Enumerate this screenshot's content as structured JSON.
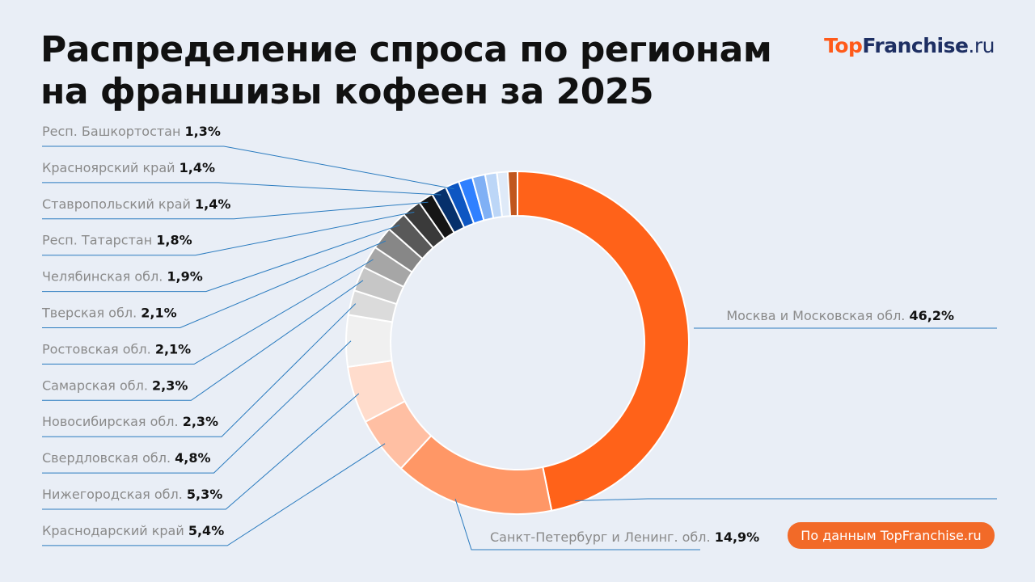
{
  "header": {
    "title_line1": "Распределение спроса по регионам",
    "title_line2": "на франшизы кофеен за 2025"
  },
  "logo": {
    "part1": "Top",
    "part2": "Franchise",
    "part3": ".ru"
  },
  "source_badge": "По данным TopFranchise.ru",
  "colors": {
    "background": "#e9eef6",
    "accent": "#f26a28",
    "leader_line": "#2a7bbf",
    "logo_dark": "#1e2f63"
  },
  "chart_data": {
    "type": "pie",
    "style": "donut",
    "title": "Распределение спроса по регионам на франшизы кофеен за 2025",
    "unit": "%",
    "slices": [
      {
        "label": "Москва и Московская обл.",
        "value": 46.2,
        "display": "46,2%",
        "color": "#ff6219"
      },
      {
        "label": "Санкт-Петербург и Ленинг. обл.",
        "value": 14.9,
        "display": "14,9%",
        "color": "#ff9766"
      },
      {
        "label": "Краснодарский край",
        "value": 5.4,
        "display": "5,4%",
        "color": "#ffbfa3"
      },
      {
        "label": "Нижегородская обл.",
        "value": 5.3,
        "display": "5,3%",
        "color": "#ffdccc"
      },
      {
        "label": "Свердловская обл.",
        "value": 4.8,
        "display": "4,8%",
        "color": "#f0f0f0"
      },
      {
        "label": "Новосибирская обл.",
        "value": 2.3,
        "display": "2,3%",
        "color": "#dbdbdb"
      },
      {
        "label": "Самарская обл.",
        "value": 2.3,
        "display": "2,3%",
        "color": "#c6c6c6"
      },
      {
        "label": "Ростовская обл.",
        "value": 2.1,
        "display": "2,1%",
        "color": "#a6a6a6"
      },
      {
        "label": "Тверская обл.",
        "value": 2.1,
        "display": "2,1%",
        "color": "#878787"
      },
      {
        "label": "Челябинская обл.",
        "value": 1.9,
        "display": "1,9%",
        "color": "#595959"
      },
      {
        "label": "Респ. Татарстан",
        "value": 1.8,
        "display": "1,8%",
        "color": "#3a3a3a"
      },
      {
        "label": "Ставропольский край",
        "value": 1.4,
        "display": "1,4%",
        "color": "#151515"
      },
      {
        "label": "Красноярский край",
        "value": 1.4,
        "display": "1,4%",
        "color": "#06306b"
      },
      {
        "label": "Респ. Башкортостан",
        "value": 1.3,
        "display": "1,3%",
        "color": "#0d56c2"
      },
      {
        "label": "",
        "value": 1.3,
        "display": "",
        "color": "#2f80ff"
      },
      {
        "label": "",
        "value": 1.2,
        "display": "",
        "color": "#7fb0f5"
      },
      {
        "label": "",
        "value": 1.1,
        "display": "",
        "color": "#bcd6f7"
      },
      {
        "label": "",
        "value": 1.0,
        "display": "",
        "color": "#dfeaf8"
      },
      {
        "label": "",
        "value": 0.9,
        "display": "",
        "color": "#c0561e"
      }
    ]
  }
}
